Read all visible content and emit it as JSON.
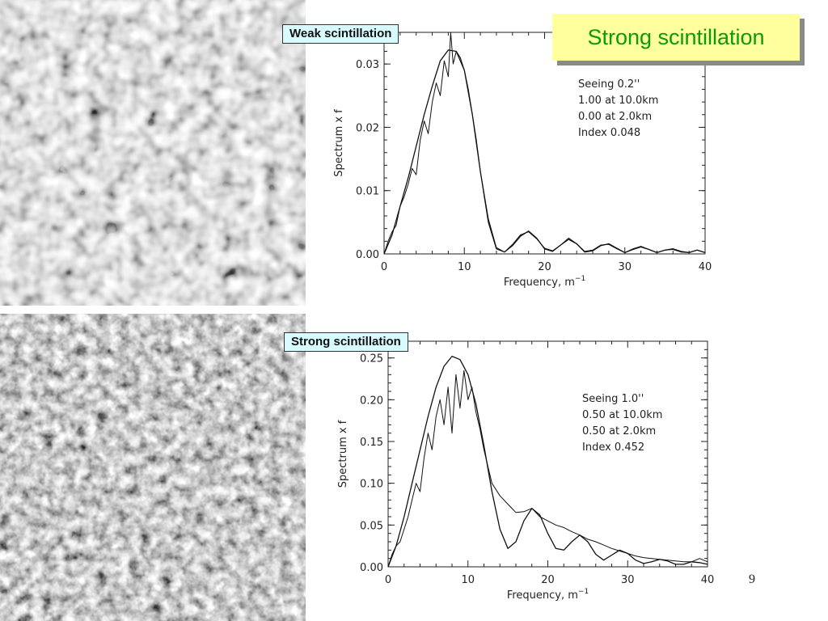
{
  "slide": {
    "title": "Strong scintillation",
    "page_number": "9"
  },
  "chart_data": [
    {
      "type": "line",
      "panel_label": "Weak scintillation",
      "xlabel": "Frequency, m",
      "xlabel_sup": "−1",
      "ylabel": "Spectrum x f",
      "xlim": [
        0,
        40
      ],
      "ylim": [
        0,
        0.035
      ],
      "xticks": [
        0,
        10,
        20,
        30,
        40
      ],
      "yticks": [
        0,
        0.01,
        0.02,
        0.03
      ],
      "ytick_labels": [
        "0.00",
        "0.01",
        "0.02",
        "0.03"
      ],
      "annotation": [
        "Seeing 0.2''",
        "1.00 at  10.0km",
        "0.00 at   2.0km",
        "Index 0.048"
      ],
      "series": [
        {
          "style": "smooth",
          "x": [
            0,
            1,
            2,
            3,
            4,
            5,
            6,
            7,
            8,
            9,
            10,
            11,
            12,
            13,
            14,
            15,
            16,
            17,
            18,
            19,
            20,
            21,
            22,
            23,
            24,
            25,
            26,
            27,
            28,
            29,
            30,
            31,
            32,
            33,
            34,
            35,
            36,
            37,
            38,
            39,
            40
          ],
          "y": [
            0,
            0.003,
            0.0075,
            0.012,
            0.017,
            0.022,
            0.0265,
            0.0305,
            0.0322,
            0.032,
            0.029,
            0.022,
            0.013,
            0.005,
            0.0008,
            0.0003,
            0.0013,
            0.0028,
            0.0036,
            0.0025,
            0.0008,
            0.0004,
            0.0014,
            0.0023,
            0.0016,
            0.0003,
            0.0005,
            0.0013,
            0.0016,
            0.0009,
            0.0002,
            0.0007,
            0.0011,
            0.0007,
            0.0002,
            0.0006,
            0.0008,
            0.0004,
            0.0002,
            0.0006,
            0.0002
          ]
        },
        {
          "style": "noisy",
          "x": [
            0,
            0.5,
            1,
            1.5,
            2,
            2.5,
            3,
            3.5,
            4,
            4.5,
            5,
            5.5,
            6,
            6.5,
            7,
            7.5,
            8,
            8.3,
            8.6,
            9,
            9.5,
            10,
            10.5,
            11,
            11.5,
            12,
            13,
            14,
            15,
            16,
            17,
            18,
            19,
            20,
            21,
            22,
            23,
            24,
            25,
            26,
            27,
            28,
            29,
            30,
            31,
            32,
            33,
            34,
            35,
            36,
            37,
            38,
            39,
            40
          ],
          "y": [
            0,
            0.002,
            0.0035,
            0.0045,
            0.0075,
            0.009,
            0.011,
            0.0135,
            0.0125,
            0.018,
            0.021,
            0.019,
            0.024,
            0.027,
            0.025,
            0.0305,
            0.028,
            0.035,
            0.03,
            0.032,
            0.031,
            0.029,
            0.026,
            0.022,
            0.018,
            0.013,
            0.0055,
            0.001,
            0.0003,
            0.0015,
            0.003,
            0.0035,
            0.0024,
            0.0009,
            0.0005,
            0.0014,
            0.0025,
            0.0016,
            0.0004,
            0.0006,
            0.0014,
            0.0015,
            0.0008,
            0.0002,
            0.0008,
            0.0012,
            0.0007,
            0.0002,
            0.0006,
            0.0007,
            0.0003,
            0.0002,
            0.0006,
            0.0002
          ]
        }
      ]
    },
    {
      "type": "line",
      "panel_label": "Strong scintillation",
      "xlabel": "Frequency, m",
      "xlabel_sup": "−1",
      "ylabel": "Spectrum x f",
      "xlim": [
        0,
        40
      ],
      "ylim": [
        0,
        0.27
      ],
      "xticks": [
        0,
        10,
        20,
        30,
        40
      ],
      "yticks": [
        0,
        0.05,
        0.1,
        0.15,
        0.2,
        0.25
      ],
      "ytick_labels": [
        "0.00",
        "0.05",
        "0.10",
        "0.15",
        "0.20",
        "0.25"
      ],
      "annotation": [
        "Seeing 1.0''",
        "0.50 at  10.0km",
        "0.50 at   2.0km",
        "Index 0.452"
      ],
      "series": [
        {
          "style": "smooth",
          "x": [
            0,
            1,
            2,
            3,
            4,
            5,
            6,
            7,
            8,
            9,
            10,
            11,
            12,
            13,
            14,
            15,
            16,
            17,
            18,
            19,
            20,
            21,
            22,
            23,
            24,
            25,
            26,
            27,
            28,
            29,
            30,
            31,
            32,
            33,
            34,
            35,
            36,
            37,
            38,
            39,
            40
          ],
          "y": [
            0,
            0.025,
            0.06,
            0.1,
            0.14,
            0.18,
            0.215,
            0.24,
            0.252,
            0.248,
            0.23,
            0.195,
            0.145,
            0.09,
            0.045,
            0.022,
            0.03,
            0.055,
            0.07,
            0.062,
            0.04,
            0.022,
            0.02,
            0.03,
            0.038,
            0.03,
            0.015,
            0.008,
            0.014,
            0.02,
            0.016,
            0.008,
            0.004,
            0.006,
            0.009,
            0.007,
            0.003,
            0.003,
            0.006,
            0.005,
            0.003
          ]
        },
        {
          "style": "noisy",
          "x": [
            0,
            0.5,
            1,
            1.5,
            2,
            2.5,
            3,
            3.5,
            4,
            4.5,
            5,
            5.5,
            6,
            6.5,
            7,
            7.5,
            8,
            8.5,
            9,
            9.5,
            10,
            10.5,
            11,
            11.5,
            12,
            13,
            14,
            15,
            16,
            17,
            18,
            19,
            20,
            21,
            22,
            23,
            24,
            25,
            26,
            27,
            28,
            29,
            30,
            31,
            32,
            33,
            34,
            35,
            36,
            37,
            38,
            39,
            40
          ],
          "y": [
            0,
            0.015,
            0.025,
            0.03,
            0.045,
            0.06,
            0.08,
            0.1,
            0.09,
            0.13,
            0.16,
            0.14,
            0.18,
            0.2,
            0.17,
            0.215,
            0.16,
            0.23,
            0.19,
            0.235,
            0.2,
            0.215,
            0.185,
            0.165,
            0.14,
            0.1,
            0.085,
            0.075,
            0.065,
            0.066,
            0.07,
            0.06,
            0.055,
            0.05,
            0.047,
            0.042,
            0.038,
            0.033,
            0.03,
            0.026,
            0.022,
            0.019,
            0.016,
            0.013,
            0.011,
            0.01,
            0.009,
            0.008,
            0.007,
            0.006,
            0.006,
            0.01,
            0.006
          ]
        }
      ]
    }
  ]
}
